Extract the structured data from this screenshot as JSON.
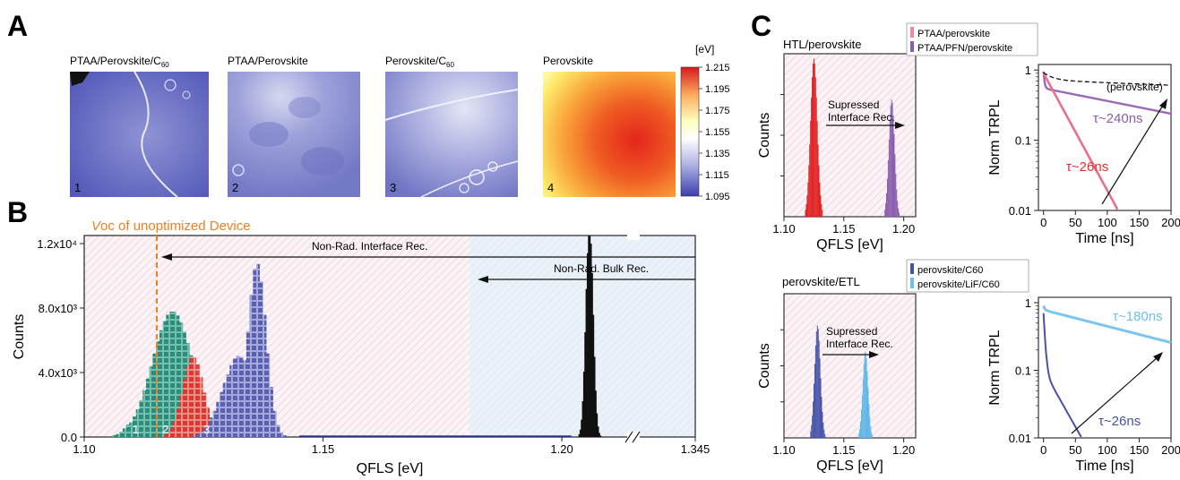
{
  "panelA": {
    "letter": "A",
    "maps": [
      {
        "label": "PTAA/Perovskite/C60",
        "main": "PTAA/Perovskite/C",
        "sub": "60",
        "num": "1"
      },
      {
        "label": "PTAA/Perovskite",
        "main": "PTAA/Perovskite",
        "sub": "",
        "num": "2"
      },
      {
        "label": "Perovskite/C60",
        "main": "Perovskite/C",
        "sub": "60",
        "num": "3"
      },
      {
        "label": "Perovskite",
        "main": "Perovskite",
        "sub": "",
        "num": "4"
      }
    ],
    "colorbar": {
      "unit": "[eV]",
      "ticks": [
        "1.215",
        "1.195",
        "1.175",
        "1.155",
        "1.135",
        "1.115",
        "1.095"
      ],
      "colors": [
        "#d7191c",
        "#fdae61",
        "#ffffbf",
        "#ffffff",
        "#b3b5e3",
        "#3b3fae"
      ]
    }
  },
  "panelB": {
    "letter": "B",
    "voc_label": "Voc of unoptimized Device",
    "voc_italic": "V",
    "voc_rest": "oc of unoptimized Device",
    "arrow_interface": "Non-Rad. Interface Rec.",
    "arrow_bulk": "Non-Rad. Bulk Rec.",
    "peak_labels": [
      "1",
      "2",
      "3",
      "4"
    ]
  },
  "panelC": {
    "letter": "C",
    "top_hist_title": "HTL/perovskite",
    "top_legend": [
      "PTAA/perovskite",
      "PTAA/PFN/perovskite"
    ],
    "top_note": [
      "Supressed",
      "Interface Rec."
    ],
    "top_tau_long": "τ~240ns",
    "top_tau_short": "τ~26ns",
    "top_ref": "(perovskite)",
    "bottom_hist_title": "perovskite/ETL",
    "bottom_legend": [
      "perovskite/C60",
      "perovskite/LiF/C60"
    ],
    "bottom_note": [
      "Supressed",
      "Interface Rec."
    ],
    "bottom_tau_long": "τ~180ns",
    "bottom_tau_short": "τ~26ns"
  },
  "chart_data": [
    {
      "type": "bar",
      "title": "",
      "xlabel": "QFLS [eV]",
      "ylabel": "Counts",
      "x_ticks": [
        "1.10",
        "1.15",
        "1.20",
        "1.345"
      ],
      "x_break": true,
      "xlim": [
        1.1,
        1.345
      ],
      "ylim": [
        0,
        12500
      ],
      "y_ticks": [
        "0.0",
        "4.0x10³",
        "8.0x10³",
        "1.2x10⁴"
      ],
      "voc_line_x": 1.12,
      "colors": [
        "#2e8b79",
        "#e8302a",
        "#5a5fb0",
        "#111111"
      ],
      "series": [
        {
          "name": "1",
          "peak_qfls": 1.119,
          "peak_counts": 7800
        },
        {
          "name": "2",
          "peak_qfls": 1.123,
          "peak_counts": 5000
        },
        {
          "name": "3",
          "peak_qfls": 1.136,
          "peak_counts": 10800
        },
        {
          "name": "4",
          "peak_qfls": 1.206,
          "peak_counts": 12500
        }
      ]
    },
    {
      "type": "bar",
      "title": "HTL/perovskite",
      "xlabel": "QFLS [eV]",
      "ylabel": "Counts",
      "x_ticks": [
        "1.10",
        "1.15",
        "1.20"
      ],
      "xlim": [
        1.1,
        1.21
      ],
      "colors": [
        "#e02020",
        "#8a5cae"
      ],
      "series": [
        {
          "name": "PTAA/perovskite",
          "peak_qfls": 1.125
        },
        {
          "name": "PTAA/PFN/perovskite",
          "peak_qfls": 1.19
        }
      ]
    },
    {
      "type": "line",
      "title": "",
      "xlabel": "Time [ns]",
      "ylabel": "Norm TRPL",
      "x_ticks": [
        "0",
        "50",
        "100",
        "150",
        "200"
      ],
      "y_ticks": [
        "0.01",
        "0.1",
        "1"
      ],
      "xlim": [
        -8,
        200
      ],
      "ylim": [
        0.01,
        1.2
      ],
      "y_scale": "log",
      "colors": [
        "#e8708a",
        "#9a6ab8",
        "#111111"
      ],
      "series": [
        {
          "name": "PTAA/perovskite",
          "tau_ns": 26
        },
        {
          "name": "PTAA/PFN/perovskite",
          "tau_ns": 240
        },
        {
          "name": "(perovskite)"
        }
      ]
    },
    {
      "type": "bar",
      "title": "perovskite/ETL",
      "xlabel": "QFLS [eV]",
      "ylabel": "Counts",
      "x_ticks": [
        "1.10",
        "1.15",
        "1.20"
      ],
      "xlim": [
        1.1,
        1.21
      ],
      "colors": [
        "#4653a8",
        "#5fb7e6"
      ],
      "series": [
        {
          "name": "perovskite/C60",
          "peak_qfls": 1.128
        },
        {
          "name": "perovskite/LiF/C60",
          "peak_qfls": 1.168
        }
      ]
    },
    {
      "type": "line",
      "title": "",
      "xlabel": "Time [ns]",
      "ylabel": "Norm TRPL",
      "x_ticks": [
        "0",
        "50",
        "100",
        "150",
        "200"
      ],
      "y_ticks": [
        "0.01",
        "0.1",
        "1"
      ],
      "xlim": [
        -8,
        200
      ],
      "ylim": [
        0.01,
        1.2
      ],
      "y_scale": "log",
      "colors": [
        "#4653a8",
        "#7cc6ee"
      ],
      "series": [
        {
          "name": "perovskite/C60",
          "tau_ns": 26
        },
        {
          "name": "perovskite/LiF/C60",
          "tau_ns": 180
        }
      ]
    }
  ]
}
